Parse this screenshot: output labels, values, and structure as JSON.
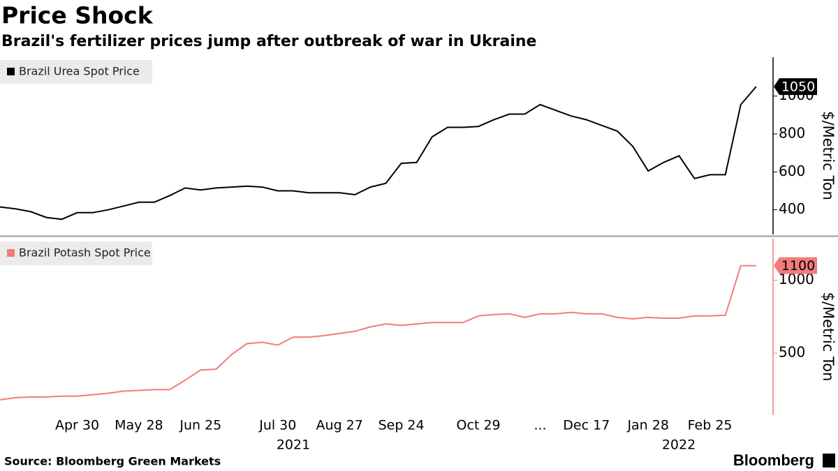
{
  "title": "Price Shock",
  "subtitle": "Brazil's fertilizer prices jump after outbreak of war in Ukraine",
  "source": "Source: Bloomberg Green Markets",
  "brand": "Bloomberg",
  "x_axis": {
    "categories": [
      null,
      null,
      null,
      null,
      null,
      "Apr 30",
      null,
      null,
      null,
      "May 28",
      null,
      null,
      null,
      "Jun 25",
      null,
      null,
      null,
      null,
      "Jul 30",
      null,
      null,
      null,
      "Aug 27",
      null,
      null,
      null,
      "Sep 24",
      null,
      null,
      null,
      null,
      "Oct 29",
      null,
      null,
      null,
      "...",
      null,
      null,
      "Dec 17",
      null,
      null,
      null,
      "Jan 28",
      null,
      null,
      null,
      "Feb 25",
      null,
      null,
      null
    ],
    "years": [
      "2021",
      "2022"
    ]
  },
  "chart_data": [
    {
      "type": "line",
      "y_axis_label": "$/Metric Ton",
      "ylim": [
        270,
        1205
      ],
      "yticks": [
        400,
        600,
        800,
        1000
      ],
      "series": [
        {
          "name": "Brazil Urea Spot Price",
          "color": "#000000",
          "values": [
            415,
            405,
            390,
            360,
            350,
            385,
            385,
            400,
            420,
            440,
            440,
            475,
            515,
            505,
            515,
            520,
            525,
            520,
            500,
            500,
            490,
            490,
            490,
            480,
            520,
            540,
            645,
            650,
            785,
            835,
            835,
            840,
            875,
            905,
            905,
            955,
            925,
            895,
            875,
            845,
            815,
            735,
            605,
            650,
            685,
            565,
            585,
            585,
            955,
            1050
          ]
        }
      ]
    },
    {
      "type": "line",
      "y_axis_label": "$/Metric Ton",
      "ylim": [
        75,
        1285
      ],
      "yticks": [
        500,
        1000
      ],
      "series": [
        {
          "name": "Brazil Potash Spot Price",
          "color": "#f07c7c",
          "values": [
            180,
            195,
            200,
            200,
            205,
            205,
            215,
            225,
            240,
            245,
            250,
            250,
            315,
            385,
            390,
            490,
            565,
            575,
            555,
            610,
            610,
            620,
            635,
            650,
            680,
            700,
            690,
            700,
            710,
            710,
            710,
            755,
            765,
            770,
            745,
            770,
            770,
            780,
            770,
            770,
            745,
            735,
            745,
            740,
            740,
            755,
            755,
            760,
            1100,
            1100
          ]
        }
      ]
    }
  ]
}
